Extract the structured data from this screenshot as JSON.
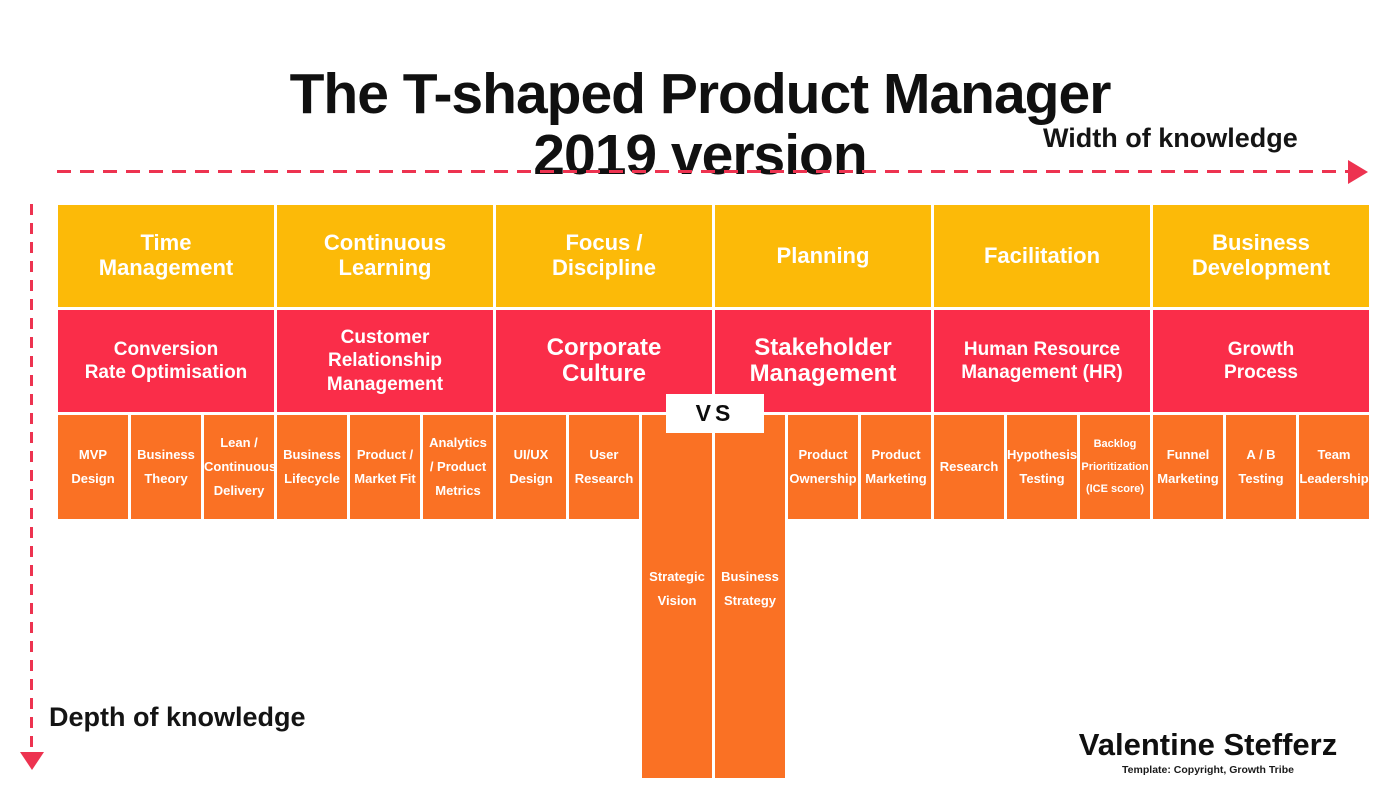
{
  "title": "The T-shaped Product Manager\n2019 version",
  "axes": {
    "width_label": "Width of knowledge",
    "depth_label": "Depth of knowledge"
  },
  "vs_label": "VS",
  "credit": {
    "author": "Valentine Stefferz",
    "template": "Template: Copyright, Growth Tribe"
  },
  "colors": {
    "yellow": "#fcba08",
    "red": "#fa2d49",
    "orange": "#fa7124",
    "arrow": "#ed3350"
  },
  "rows": {
    "width_row": {
      "items": [
        {
          "label": "Time\nManagement"
        },
        {
          "label": "Continuous\nLearning"
        },
        {
          "label": "Focus /\nDiscipline"
        },
        {
          "label": "Planning"
        },
        {
          "label": "Facilitation"
        },
        {
          "label": "Business\nDevelopment"
        }
      ]
    },
    "middle_row": {
      "items": [
        {
          "label": "Conversion\nRate Optimisation",
          "emphasis": false
        },
        {
          "label": "Customer\nRelationship\nManagement",
          "emphasis": false
        },
        {
          "label": "Corporate\nCulture",
          "emphasis": true
        },
        {
          "label": "Stakeholder\nManagement",
          "emphasis": true
        },
        {
          "label": "Human Resource\nManagement (HR)",
          "emphasis": false
        },
        {
          "label": "Growth\nProcess",
          "emphasis": false
        }
      ]
    },
    "skills_row": {
      "items": [
        {
          "label": "MVP\nDesign",
          "tall": false,
          "small": false
        },
        {
          "label": "Business\nTheory",
          "tall": false,
          "small": false
        },
        {
          "label": "Lean /\nContinuous\nDelivery",
          "tall": false,
          "small": false
        },
        {
          "label": "Business\nLifecycle",
          "tall": false,
          "small": false
        },
        {
          "label": "Product /\nMarket Fit",
          "tall": false,
          "small": false
        },
        {
          "label": "Analytics\n/ Product\nMetrics",
          "tall": false,
          "small": false
        },
        {
          "label": "UI/UX\nDesign",
          "tall": false,
          "small": false
        },
        {
          "label": "User\nResearch",
          "tall": false,
          "small": false
        },
        {
          "label": "Strategic\nVision",
          "tall": true,
          "small": false
        },
        {
          "label": "Business\nStrategy",
          "tall": true,
          "small": false
        },
        {
          "label": "Product\nOwnership",
          "tall": false,
          "small": false
        },
        {
          "label": "Product\nMarketing",
          "tall": false,
          "small": false
        },
        {
          "label": "Research",
          "tall": false,
          "small": false
        },
        {
          "label": "Hypothesis\nTesting",
          "tall": false,
          "small": false
        },
        {
          "label": "Backlog\nPrioritization\n(ICE score)",
          "tall": false,
          "small": true
        },
        {
          "label": "Funnel\nMarketing",
          "tall": false,
          "small": false
        },
        {
          "label": "A / B\nTesting",
          "tall": false,
          "small": false
        },
        {
          "label": "Team\nLeadership",
          "tall": false,
          "small": false
        }
      ]
    }
  }
}
